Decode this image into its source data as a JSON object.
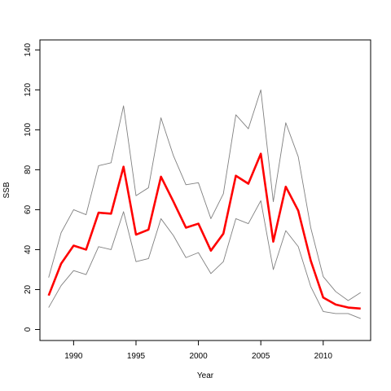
{
  "chart_data": {
    "type": "line",
    "xlabel": "Year",
    "ylabel": "SSB",
    "xlim": [
      1987.3,
      2013.8
    ],
    "ylim": [
      -5.5,
      145
    ],
    "x_ticks": [
      1990,
      1995,
      2000,
      2005,
      2010
    ],
    "y_ticks": [
      0,
      20,
      40,
      60,
      80,
      100,
      120,
      140
    ],
    "x": [
      1988,
      1989,
      1990,
      1991,
      1992,
      1993,
      1994,
      1995,
      1996,
      1997,
      1998,
      1999,
      2000,
      2001,
      2002,
      2003,
      2004,
      2005,
      2006,
      2007,
      2008,
      2009,
      2010,
      2011,
      2012,
      2013
    ],
    "series": [
      {
        "role": "estimate",
        "color": "#ff0000",
        "values": [
          17,
          33,
          42,
          40,
          58.5,
          58,
          81.5,
          47.5,
          50,
          76.5,
          64,
          51,
          53,
          39.5,
          48,
          77,
          73,
          88,
          44,
          71.5,
          59.5,
          34.5,
          16,
          12.5,
          11,
          10.5
        ]
      },
      {
        "role": "upper-bound",
        "color": "#808080",
        "values": [
          26,
          48.5,
          60,
          57.5,
          82,
          83.5,
          112,
          67,
          71,
          106,
          87,
          72.5,
          73.5,
          55.5,
          68,
          107.5,
          100.5,
          120,
          64,
          103.5,
          86.5,
          51,
          26.5,
          19,
          14.5,
          18.5
        ]
      },
      {
        "role": "lower-bound",
        "color": "#808080",
        "values": [
          11,
          22,
          29.5,
          27.5,
          41.5,
          40,
          59,
          34,
          35.5,
          55.5,
          47,
          36,
          38.5,
          28,
          34,
          55.5,
          53,
          64.5,
          30,
          49.5,
          41.5,
          21.5,
          9,
          8,
          8,
          5.5
        ]
      }
    ],
    "grid": false,
    "legend": "none"
  }
}
